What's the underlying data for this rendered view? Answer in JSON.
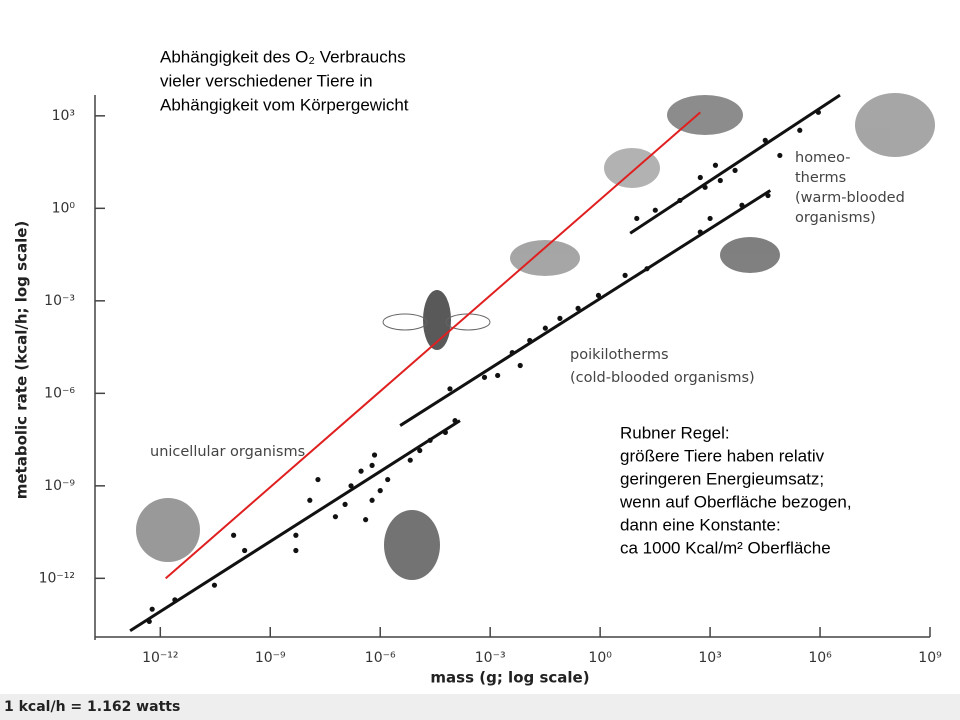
{
  "chart_data": {
    "type": "scatter",
    "x_label": "mass (g; log scale)",
    "y_label": "metabolic rate (kcal/h; log scale)",
    "footnote": "1 kcal/h = 1.162 watts",
    "xscale": "log",
    "yscale": "log",
    "grid": false,
    "color": "#111",
    "xlim": [
      1e-14,
      1000000000.0
    ],
    "ylim": [
      1e-14,
      10000.0
    ],
    "xticks": [
      {
        "value": 1e-12,
        "label": "10⁻¹²"
      },
      {
        "value": 1e-09,
        "label": "10⁻⁹"
      },
      {
        "value": 1e-06,
        "label": "10⁻⁶"
      },
      {
        "value": 0.001,
        "label": "10⁻³"
      },
      {
        "value": 1,
        "label": "10⁰"
      },
      {
        "value": 1000,
        "label": "10³"
      },
      {
        "value": 1000000.0,
        "label": "10⁶"
      },
      {
        "value": 1000000000.0,
        "label": "10⁹"
      }
    ],
    "yticks": [
      {
        "value": 1e-12,
        "label": "10⁻¹²"
      },
      {
        "value": 1e-09,
        "label": "10⁻⁹"
      },
      {
        "value": 1e-06,
        "label": "10⁻⁶"
      },
      {
        "value": 0.001,
        "label": "10⁻³"
      },
      {
        "value": 1,
        "label": "10⁰"
      },
      {
        "value": 1000,
        "label": "10³"
      }
    ],
    "x": [
      5e-13,
      6e-13,
      2.5e-12,
      3e-11,
      1e-10,
      2e-10,
      5e-09,
      5e-09,
      1.2e-08,
      2e-08,
      6e-08,
      1.1e-07,
      1.6e-07,
      3e-07,
      6e-07,
      7e-07,
      1e-06,
      1.6e-06,
      6e-07,
      4e-07,
      6.6e-06,
      1.2e-05,
      2.3e-05,
      6e-05,
      0.00011,
      8e-05,
      0.0007,
      0.0016,
      0.004,
      0.0066,
      0.012,
      0.032,
      0.08,
      0.25,
      0.9,
      4.8,
      19,
      540,
      1000,
      7400,
      38000,
      10,
      32,
      150,
      730,
      1900,
      4800,
      32000,
      80000,
      280000,
      900000,
      540,
      1400
    ],
    "values": [
      4e-14,
      1e-13,
      2e-13,
      6e-13,
      2.5e-11,
      8e-12,
      2.5e-11,
      8e-12,
      3.4e-10,
      1.6e-09,
      1e-10,
      2.5e-10,
      1e-09,
      3e-09,
      4.6e-09,
      1e-08,
      7e-10,
      1.6e-09,
      3.4e-10,
      8e-11,
      6.8e-09,
      1.4e-08,
      3e-08,
      5.4e-08,
      1.3e-07,
      1.4e-06,
      3.3e-06,
      3.8e-06,
      2.1e-05,
      8e-06,
      5.2e-05,
      0.00013,
      0.00027,
      0.00057,
      0.0015,
      0.0067,
      0.011,
      0.17,
      0.47,
      1.26,
      2.6,
      0.47,
      0.87,
      1.8,
      4.8,
      8,
      17,
      160,
      52,
      340,
      1300,
      10,
      25
    ],
    "fit_lines": [
      {
        "x": [
          1.5e-13,
          0.00015
        ],
        "y": [
          2e-14,
          1.3e-07
        ]
      },
      {
        "x": [
          3.5e-06,
          44000
        ],
        "y": [
          9e-08,
          3.8
        ]
      },
      {
        "x": [
          6.6,
          3500000
        ],
        "y": [
          0.155,
          4700
        ]
      }
    ],
    "red_line": {
      "x": [
        1.4e-12,
        540
      ],
      "y": [
        1e-12,
        1300
      ],
      "color": "#e02020"
    },
    "group_labels": [
      {
        "lines": [
          "unicellular organisms"
        ]
      },
      {
        "lines": [
          "poikilotherms",
          "(cold-blooded organisms)"
        ]
      },
      {
        "lines": [
          "homeo-",
          "therms",
          "(warm-blooded",
          "organisms)"
        ]
      }
    ],
    "annotations": [
      {
        "lines": [
          "Abhängigkeit des O₂ Verbrauchs",
          "vieler verschiedener Tiere in",
          "Abhängigkeit vom Körpergewicht"
        ]
      },
      {
        "lines": [
          "Rubner Regel:",
          "größere Tiere haben relativ",
          "geringeren Energieumsatz;",
          "wenn auf Oberfläche bezogen,",
          "dann eine Konstante:",
          "ca 1000 Kcal/m² Oberfläche"
        ]
      }
    ]
  }
}
